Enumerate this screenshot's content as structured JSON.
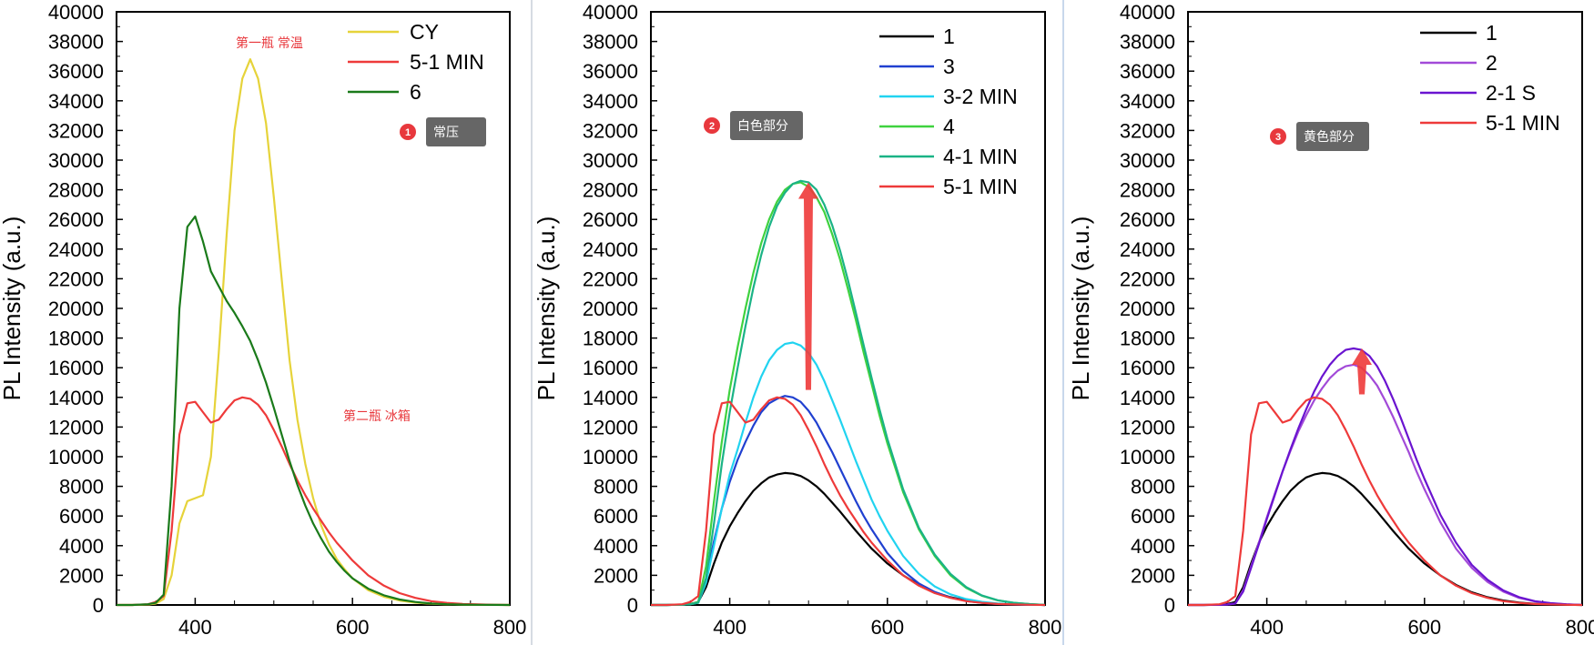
{
  "chart_data": [
    {
      "type": "line",
      "ylabel": "PL Intensity (a.u.)",
      "xlabel": "",
      "xlim": [
        300,
        800
      ],
      "ylim": [
        0,
        40000
      ],
      "xticks": [
        400,
        600,
        800
      ],
      "yticks": [
        0,
        2000,
        4000,
        6000,
        8000,
        10000,
        12000,
        14000,
        16000,
        18000,
        20000,
        22000,
        24000,
        26000,
        28000,
        30000,
        32000,
        34000,
        36000,
        38000,
        40000
      ],
      "grid": false,
      "legend": "top-right",
      "x": [
        300,
        320,
        340,
        350,
        360,
        370,
        380,
        390,
        400,
        410,
        420,
        430,
        440,
        450,
        460,
        470,
        480,
        490,
        500,
        510,
        520,
        530,
        540,
        550,
        560,
        570,
        580,
        590,
        600,
        620,
        640,
        660,
        680,
        700,
        720,
        740,
        760,
        780,
        800
      ],
      "series": [
        {
          "name": "CY",
          "color": "#e6d33a",
          "values": [
            0,
            0,
            30,
            100,
            400,
            2000,
            5500,
            7000,
            7200,
            7400,
            10000,
            17000,
            25000,
            32000,
            35500,
            36800,
            35500,
            32500,
            27500,
            22000,
            16500,
            12500,
            9500,
            7200,
            5400,
            4100,
            3100,
            2400,
            1800,
            1000,
            550,
            300,
            160,
            80,
            40,
            20,
            10,
            5,
            0
          ]
        },
        {
          "name": "5-1 MIN",
          "color": "#ee3a3a",
          "values": [
            0,
            0,
            50,
            200,
            600,
            5000,
            11500,
            13600,
            13700,
            13000,
            12300,
            12500,
            13200,
            13800,
            14000,
            13900,
            13500,
            12800,
            11800,
            10700,
            9500,
            8400,
            7400,
            6500,
            5700,
            4900,
            4200,
            3600,
            3000,
            2000,
            1300,
            800,
            480,
            260,
            140,
            70,
            35,
            15,
            0
          ]
        },
        {
          "name": "6",
          "color": "#1a7a1a",
          "values": [
            0,
            0,
            50,
            150,
            700,
            8000,
            20000,
            25500,
            26200,
            24500,
            22500,
            21500,
            20500,
            19700,
            18800,
            17800,
            16500,
            15000,
            13300,
            11500,
            9700,
            8100,
            6700,
            5500,
            4500,
            3600,
            2900,
            2300,
            1800,
            1100,
            650,
            370,
            200,
            100,
            50,
            25,
            10,
            5,
            0
          ]
        }
      ],
      "annotations": [
        "第一瓶 常温",
        "第二瓶 冰箱"
      ],
      "callout": {
        "badge": "1",
        "text": "常压"
      }
    },
    {
      "type": "line",
      "ylabel": "PL Intensity (a.u.)",
      "xlabel": "",
      "xlim": [
        300,
        800
      ],
      "ylim": [
        0,
        40000
      ],
      "xticks": [
        400,
        600,
        800
      ],
      "yticks": [
        0,
        2000,
        4000,
        6000,
        8000,
        10000,
        12000,
        14000,
        16000,
        18000,
        20000,
        22000,
        24000,
        26000,
        28000,
        30000,
        32000,
        34000,
        36000,
        38000,
        40000
      ],
      "grid": false,
      "legend": "top-right",
      "x": [
        300,
        320,
        340,
        350,
        360,
        370,
        380,
        390,
        400,
        410,
        420,
        430,
        440,
        450,
        460,
        470,
        480,
        490,
        500,
        510,
        520,
        530,
        540,
        550,
        560,
        570,
        580,
        590,
        600,
        620,
        640,
        660,
        680,
        700,
        720,
        740,
        760,
        780,
        800
      ],
      "series": [
        {
          "name": "1",
          "color": "#000000",
          "values": [
            0,
            0,
            20,
            60,
            200,
            1200,
            2800,
            4200,
            5300,
            6200,
            7000,
            7700,
            8200,
            8600,
            8800,
            8900,
            8850,
            8700,
            8400,
            8000,
            7500,
            6900,
            6300,
            5650,
            5000,
            4400,
            3800,
            3300,
            2800,
            2000,
            1350,
            850,
            520,
            300,
            160,
            80,
            40,
            15,
            0
          ]
        },
        {
          "name": "3",
          "color": "#2040d0",
          "values": [
            0,
            0,
            20,
            60,
            200,
            1800,
            4300,
            6500,
            8300,
            9800,
            11000,
            12100,
            13000,
            13600,
            13900,
            14100,
            14000,
            13700,
            13100,
            12300,
            11300,
            10300,
            9200,
            8100,
            7000,
            6000,
            5100,
            4300,
            3500,
            2300,
            1450,
            880,
            500,
            270,
            140,
            70,
            30,
            12,
            0
          ]
        },
        {
          "name": "3-2 MIN",
          "color": "#21d3f0",
          "values": [
            0,
            0,
            20,
            50,
            150,
            1500,
            4000,
            6500,
            8800,
            10500,
            12300,
            14000,
            15400,
            16500,
            17200,
            17600,
            17700,
            17500,
            17000,
            16200,
            15100,
            13800,
            12500,
            11100,
            9700,
            8400,
            7100,
            6000,
            5000,
            3300,
            2100,
            1250,
            720,
            400,
            210,
            100,
            45,
            18,
            0
          ]
        },
        {
          "name": "4",
          "color": "#3fd23f",
          "values": [
            0,
            0,
            20,
            60,
            200,
            2600,
            7000,
            11000,
            14500,
            17400,
            20000,
            22400,
            24400,
            26000,
            27200,
            28000,
            28400,
            28500,
            28200,
            27500,
            26500,
            25000,
            23300,
            21300,
            19200,
            17000,
            14900,
            12800,
            10900,
            7600,
            5100,
            3300,
            2000,
            1150,
            620,
            310,
            150,
            60,
            0
          ]
        },
        {
          "name": "4-1 MIN",
          "color": "#1ab386",
          "values": [
            0,
            0,
            20,
            50,
            150,
            1800,
            5500,
            9500,
            13000,
            16000,
            18800,
            21400,
            23600,
            25500,
            26900,
            27800,
            28400,
            28600,
            28500,
            28000,
            27000,
            25600,
            23900,
            21900,
            19700,
            17500,
            15300,
            13200,
            11200,
            7800,
            5200,
            3400,
            2100,
            1200,
            640,
            320,
            150,
            60,
            0
          ]
        },
        {
          "name": "5-1 MIN",
          "color": "#ee3a3a",
          "values": [
            0,
            0,
            50,
            200,
            600,
            5000,
            11500,
            13600,
            13700,
            13000,
            12300,
            12500,
            13200,
            13800,
            14000,
            13900,
            13500,
            12800,
            11800,
            10700,
            9500,
            8400,
            7400,
            6500,
            5700,
            4900,
            4200,
            3600,
            3000,
            2000,
            1300,
            800,
            480,
            260,
            140,
            70,
            35,
            15,
            0
          ]
        }
      ],
      "callout": {
        "badge": "2",
        "text": "白色部分"
      }
    },
    {
      "type": "line",
      "ylabel": "PL Intensity (a.u.)",
      "xlabel": "",
      "xlim": [
        300,
        800
      ],
      "ylim": [
        0,
        40000
      ],
      "xticks": [
        400,
        600,
        800
      ],
      "yticks": [
        0,
        2000,
        4000,
        6000,
        8000,
        10000,
        12000,
        14000,
        16000,
        18000,
        20000,
        22000,
        24000,
        26000,
        28000,
        30000,
        32000,
        34000,
        36000,
        38000,
        40000
      ],
      "grid": false,
      "legend": "top-right",
      "x": [
        300,
        320,
        340,
        350,
        360,
        370,
        380,
        390,
        400,
        410,
        420,
        430,
        440,
        450,
        460,
        470,
        480,
        490,
        500,
        510,
        520,
        530,
        540,
        550,
        560,
        570,
        580,
        590,
        600,
        620,
        640,
        660,
        680,
        700,
        720,
        740,
        760,
        780,
        800
      ],
      "series": [
        {
          "name": "1",
          "color": "#000000",
          "values": [
            0,
            0,
            20,
            60,
            200,
            1200,
            2800,
            4200,
            5300,
            6200,
            7000,
            7700,
            8200,
            8600,
            8800,
            8900,
            8850,
            8700,
            8400,
            8000,
            7500,
            6900,
            6300,
            5650,
            5000,
            4400,
            3800,
            3300,
            2800,
            2000,
            1350,
            850,
            520,
            300,
            160,
            80,
            40,
            15,
            0
          ]
        },
        {
          "name": "2",
          "color": "#a24ad8",
          "values": [
            0,
            0,
            10,
            30,
            100,
            1000,
            2600,
            4200,
            5900,
            7500,
            9000,
            10400,
            11700,
            12800,
            13800,
            14600,
            15300,
            15800,
            16100,
            16200,
            16000,
            15500,
            14800,
            13800,
            12700,
            11500,
            10300,
            9000,
            7800,
            5600,
            3800,
            2500,
            1550,
            900,
            480,
            240,
            110,
            45,
            0
          ]
        },
        {
          "name": "2-1 S",
          "color": "#6a14d0",
          "values": [
            0,
            0,
            10,
            30,
            100,
            900,
            2500,
            4100,
            5800,
            7400,
            9000,
            10500,
            11900,
            13200,
            14400,
            15400,
            16200,
            16800,
            17200,
            17300,
            17200,
            16800,
            16100,
            15100,
            13900,
            12600,
            11200,
            9800,
            8500,
            6100,
            4200,
            2700,
            1700,
            980,
            530,
            260,
            120,
            50,
            0
          ]
        },
        {
          "name": "5-1 MIN",
          "color": "#ee3a3a",
          "values": [
            0,
            0,
            50,
            200,
            600,
            5000,
            11500,
            13600,
            13700,
            13000,
            12300,
            12500,
            13200,
            13800,
            14000,
            13900,
            13500,
            12800,
            11800,
            10700,
            9500,
            8400,
            7400,
            6500,
            5700,
            4900,
            4200,
            3600,
            3000,
            2000,
            1300,
            800,
            480,
            260,
            140,
            70,
            35,
            15,
            0
          ]
        }
      ],
      "callout": {
        "badge": "3",
        "text": "黄色部分"
      }
    }
  ]
}
